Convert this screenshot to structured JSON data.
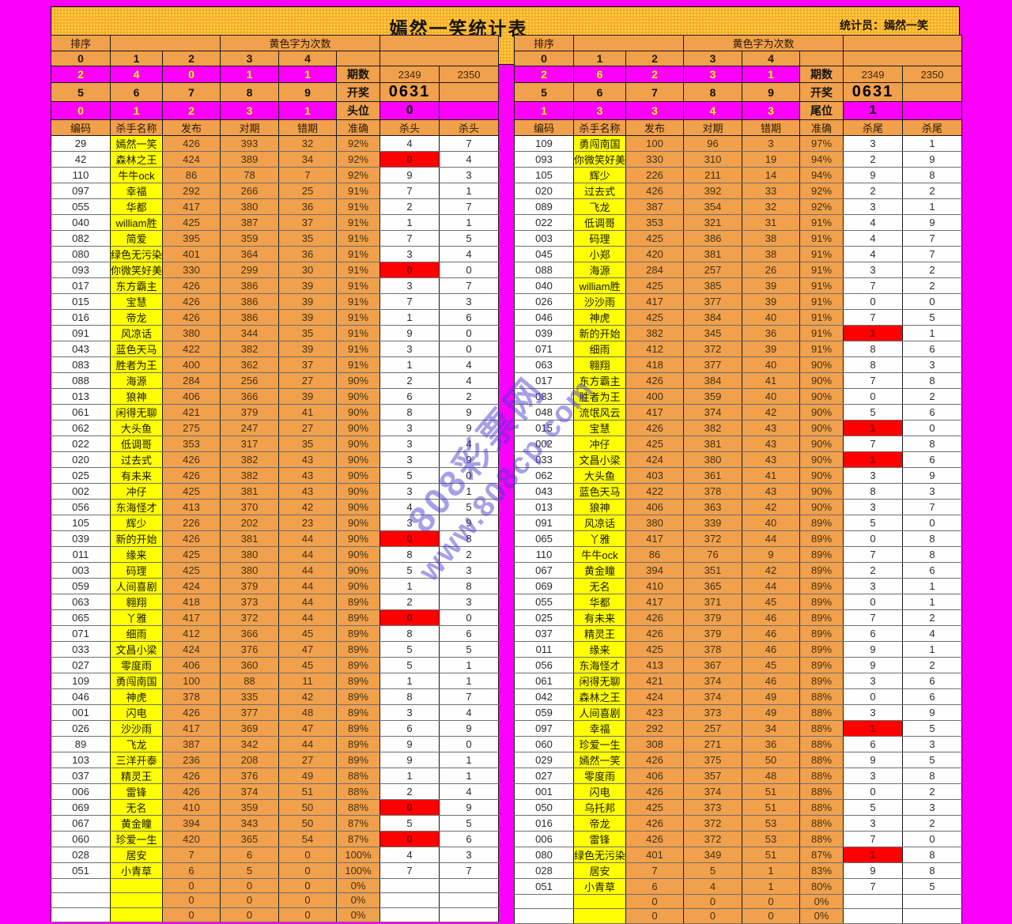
{
  "page": {
    "title": "嫣然一笑统计表",
    "statistician": "统计员：嫣然一笑",
    "watermark": {
      "line1": "808彩票网",
      "line2": "www.808cp.com"
    },
    "colors": {
      "background_magenta": "#fb00fb",
      "band_gold": "#f9ad2e",
      "cell_orange": "#f1a04c",
      "name_yellow": "#ffff00",
      "highlight_red": "#fe0000",
      "watermark_blue": "#443ace"
    }
  },
  "left": {
    "sort_label": "排序",
    "note": "黄色字为次数",
    "digits_top": [
      "0",
      "1",
      "2",
      "3",
      "4"
    ],
    "counts_top": [
      "2",
      "4",
      "0",
      "1",
      "1"
    ],
    "digits_bottom": [
      "5",
      "6",
      "7",
      "8",
      "9"
    ],
    "counts_bottom": [
      "0",
      "1",
      "2",
      "3",
      "1"
    ],
    "period_label": "期数",
    "period_values": [
      "2349",
      "2350"
    ],
    "draw_label": "开奖",
    "draw_value": "0631",
    "position_label": "头位",
    "position_value": "0",
    "columns": [
      "编码",
      "杀手名称",
      "发布",
      "对期",
      "错期",
      "准确",
      "杀头",
      "杀头"
    ],
    "red_rows": [
      1,
      8,
      25,
      30,
      42,
      44
    ],
    "empty_row_count": 3,
    "empty_row_template": [
      "",
      "",
      "0",
      "0",
      "0",
      "0%",
      "",
      ""
    ],
    "rows": [
      [
        "29",
        "嫣然一笑",
        "426",
        "393",
        "32",
        "92%",
        "4",
        "7"
      ],
      [
        "42",
        "森林之王",
        "424",
        "389",
        "34",
        "92%",
        "0",
        "4"
      ],
      [
        "110",
        "牛牛ock",
        "86",
        "78",
        "7",
        "92%",
        "9",
        "3"
      ],
      [
        "097",
        "幸福",
        "292",
        "266",
        "25",
        "91%",
        "7",
        "1"
      ],
      [
        "055",
        "华都",
        "417",
        "380",
        "36",
        "91%",
        "2",
        "7"
      ],
      [
        "040",
        "william胜",
        "425",
        "387",
        "37",
        "91%",
        "1",
        "1"
      ],
      [
        "082",
        "简爱",
        "395",
        "359",
        "35",
        "91%",
        "7",
        "5"
      ],
      [
        "080",
        "绿色无污染",
        "401",
        "364",
        "36",
        "91%",
        "3",
        "4"
      ],
      [
        "093",
        "你微笑好美",
        "330",
        "299",
        "30",
        "91%",
        "0",
        "0"
      ],
      [
        "017",
        "东方霸主",
        "426",
        "386",
        "39",
        "91%",
        "3",
        "7"
      ],
      [
        "015",
        "宝慧",
        "426",
        "386",
        "39",
        "91%",
        "7",
        "3"
      ],
      [
        "016",
        "帝龙",
        "426",
        "386",
        "39",
        "91%",
        "1",
        "6"
      ],
      [
        "091",
        "风凉话",
        "380",
        "344",
        "35",
        "91%",
        "9",
        "0"
      ],
      [
        "043",
        "蓝色天马",
        "422",
        "382",
        "39",
        "91%",
        "3",
        "0"
      ],
      [
        "083",
        "胜者为王",
        "400",
        "362",
        "37",
        "91%",
        "1",
        "4"
      ],
      [
        "088",
        "海源",
        "284",
        "256",
        "27",
        "90%",
        "2",
        "4"
      ],
      [
        "013",
        "狼神",
        "406",
        "366",
        "39",
        "90%",
        "6",
        "2"
      ],
      [
        "061",
        "闲得无聊",
        "421",
        "379",
        "41",
        "90%",
        "8",
        "9"
      ],
      [
        "062",
        "大头鱼",
        "275",
        "247",
        "27",
        "90%",
        "3",
        "9"
      ],
      [
        "022",
        "低调哥",
        "353",
        "317",
        "35",
        "90%",
        "3",
        "4"
      ],
      [
        "020",
        "过去式",
        "426",
        "382",
        "43",
        "90%",
        "3",
        "9"
      ],
      [
        "025",
        "有未来",
        "426",
        "382",
        "43",
        "90%",
        "5",
        "0"
      ],
      [
        "002",
        "冲仔",
        "425",
        "381",
        "43",
        "90%",
        "3",
        "1"
      ],
      [
        "056",
        "东海怪才",
        "413",
        "370",
        "42",
        "90%",
        "4",
        "5"
      ],
      [
        "105",
        "辉少",
        "226",
        "202",
        "23",
        "90%",
        "3",
        "9"
      ],
      [
        "039",
        "新的开始",
        "426",
        "381",
        "44",
        "90%",
        "0",
        "8"
      ],
      [
        "011",
        "缘来",
        "425",
        "380",
        "44",
        "90%",
        "8",
        "2"
      ],
      [
        "003",
        "码理",
        "425",
        "380",
        "44",
        "90%",
        "5",
        "3"
      ],
      [
        "059",
        "人间喜剧",
        "424",
        "379",
        "44",
        "90%",
        "1",
        "8"
      ],
      [
        "063",
        "翱翔",
        "418",
        "373",
        "44",
        "89%",
        "2",
        "3"
      ],
      [
        "065",
        "丫雅",
        "417",
        "372",
        "44",
        "89%",
        "0",
        "0"
      ],
      [
        "071",
        "细雨",
        "412",
        "366",
        "45",
        "89%",
        "8",
        "6"
      ],
      [
        "033",
        "文昌小梁",
        "424",
        "376",
        "47",
        "89%",
        "5",
        "5"
      ],
      [
        "027",
        "零度雨",
        "406",
        "360",
        "45",
        "89%",
        "5",
        "1"
      ],
      [
        "109",
        "勇闯南国",
        "100",
        "88",
        "11",
        "89%",
        "1",
        "1"
      ],
      [
        "046",
        "神虎",
        "378",
        "335",
        "42",
        "89%",
        "8",
        "7"
      ],
      [
        "001",
        "闪电",
        "426",
        "377",
        "48",
        "89%",
        "3",
        "4"
      ],
      [
        "026",
        "沙沙雨",
        "417",
        "369",
        "47",
        "89%",
        "6",
        "9"
      ],
      [
        "89",
        "飞龙",
        "387",
        "342",
        "44",
        "89%",
        "9",
        "0"
      ],
      [
        "103",
        "三洋开泰",
        "236",
        "208",
        "27",
        "89%",
        "9",
        "1"
      ],
      [
        "037",
        "精灵王",
        "426",
        "376",
        "49",
        "88%",
        "1",
        "1"
      ],
      [
        "006",
        "雷锋",
        "426",
        "374",
        "51",
        "88%",
        "2",
        "4"
      ],
      [
        "069",
        "无名",
        "410",
        "359",
        "50",
        "88%",
        "0",
        "9"
      ],
      [
        "067",
        "黄金瞳",
        "394",
        "343",
        "50",
        "87%",
        "5",
        "5"
      ],
      [
        "060",
        "珍爱一生",
        "420",
        "365",
        "54",
        "87%",
        "0",
        "6"
      ],
      [
        "028",
        "居安",
        "7",
        "6",
        "0",
        "100%",
        "4",
        "3"
      ],
      [
        "051",
        "小青草",
        "6",
        "5",
        "0",
        "100%",
        "7",
        "7"
      ]
    ]
  },
  "right": {
    "sort_label": "排序",
    "note": "黄色字为次数",
    "digits_top": [
      "0",
      "1",
      "2",
      "3",
      "4"
    ],
    "counts_top": [
      "2",
      "6",
      "2",
      "3",
      "1"
    ],
    "digits_bottom": [
      "5",
      "6",
      "7",
      "8",
      "9"
    ],
    "counts_bottom": [
      "1",
      "3",
      "3",
      "4",
      "3"
    ],
    "period_label": "期数",
    "period_values": [
      "2349",
      "2350"
    ],
    "draw_label": "开奖",
    "draw_value": "0631",
    "position_label": "尾位",
    "position_value": "1",
    "columns": [
      "编码",
      "杀手名称",
      "发布",
      "对期",
      "错期",
      "准确",
      "杀尾",
      "杀尾"
    ],
    "red_rows": [
      12,
      18,
      20,
      37,
      45
    ],
    "empty_row_count": 2,
    "empty_row_template": [
      "",
      "",
      "0",
      "0",
      "0",
      "0%",
      "",
      ""
    ],
    "rows": [
      [
        "109",
        "勇闯南国",
        "100",
        "96",
        "3",
        "97%",
        "3",
        "1"
      ],
      [
        "093",
        "你微笑好美",
        "330",
        "310",
        "19",
        "94%",
        "2",
        "9"
      ],
      [
        "105",
        "辉少",
        "226",
        "211",
        "14",
        "94%",
        "9",
        "8"
      ],
      [
        "020",
        "过去式",
        "426",
        "392",
        "33",
        "92%",
        "2",
        "2"
      ],
      [
        "089",
        "飞龙",
        "387",
        "354",
        "32",
        "92%",
        "3",
        "1"
      ],
      [
        "022",
        "低调哥",
        "353",
        "321",
        "31",
        "91%",
        "4",
        "9"
      ],
      [
        "003",
        "码理",
        "425",
        "386",
        "38",
        "91%",
        "4",
        "7"
      ],
      [
        "045",
        "小郑",
        "420",
        "381",
        "38",
        "91%",
        "4",
        "7"
      ],
      [
        "088",
        "海源",
        "284",
        "257",
        "26",
        "91%",
        "3",
        "2"
      ],
      [
        "040",
        "william胜",
        "425",
        "385",
        "39",
        "91%",
        "7",
        "2"
      ],
      [
        "026",
        "沙沙雨",
        "417",
        "377",
        "39",
        "91%",
        "0",
        "0"
      ],
      [
        "046",
        "神虎",
        "425",
        "384",
        "40",
        "91%",
        "7",
        "5"
      ],
      [
        "039",
        "新的开始",
        "382",
        "345",
        "36",
        "91%",
        "1",
        "1"
      ],
      [
        "071",
        "细雨",
        "412",
        "372",
        "39",
        "91%",
        "8",
        "6"
      ],
      [
        "063",
        "翱翔",
        "418",
        "377",
        "40",
        "90%",
        "8",
        "3"
      ],
      [
        "017",
        "东方霸主",
        "426",
        "384",
        "41",
        "90%",
        "7",
        "8"
      ],
      [
        "083",
        "胜者为王",
        "400",
        "359",
        "40",
        "90%",
        "0",
        "2"
      ],
      [
        "048",
        "流氓风云",
        "417",
        "374",
        "42",
        "90%",
        "5",
        "6"
      ],
      [
        "015",
        "宝慧",
        "426",
        "382",
        "43",
        "90%",
        "1",
        "0"
      ],
      [
        "002",
        "冲仔",
        "425",
        "381",
        "43",
        "90%",
        "7",
        "8"
      ],
      [
        "033",
        "文昌小梁",
        "424",
        "380",
        "43",
        "90%",
        "1",
        "6"
      ],
      [
        "062",
        "大头鱼",
        "403",
        "361",
        "41",
        "90%",
        "3",
        "9"
      ],
      [
        "043",
        "蓝色天马",
        "422",
        "378",
        "43",
        "90%",
        "8",
        "3"
      ],
      [
        "013",
        "狼神",
        "406",
        "363",
        "42",
        "90%",
        "3",
        "7"
      ],
      [
        "091",
        "风凉话",
        "380",
        "339",
        "40",
        "89%",
        "5",
        "0"
      ],
      [
        "065",
        "丫雅",
        "417",
        "372",
        "44",
        "89%",
        "0",
        "8"
      ],
      [
        "110",
        "牛牛ock",
        "86",
        "76",
        "9",
        "89%",
        "7",
        "8"
      ],
      [
        "067",
        "黄金瞳",
        "394",
        "351",
        "42",
        "89%",
        "2",
        "6"
      ],
      [
        "069",
        "无名",
        "410",
        "365",
        "44",
        "89%",
        "3",
        "1"
      ],
      [
        "055",
        "华都",
        "417",
        "371",
        "45",
        "89%",
        "0",
        "1"
      ],
      [
        "025",
        "有未来",
        "426",
        "379",
        "46",
        "89%",
        "7",
        "2"
      ],
      [
        "037",
        "精灵王",
        "426",
        "379",
        "46",
        "89%",
        "6",
        "4"
      ],
      [
        "011",
        "缘来",
        "425",
        "378",
        "46",
        "89%",
        "9",
        "1"
      ],
      [
        "056",
        "东海怪才",
        "413",
        "367",
        "45",
        "89%",
        "9",
        "2"
      ],
      [
        "061",
        "闲得无聊",
        "421",
        "374",
        "46",
        "89%",
        "3",
        "6"
      ],
      [
        "042",
        "森林之王",
        "424",
        "374",
        "49",
        "88%",
        "0",
        "6"
      ],
      [
        "059",
        "人间喜剧",
        "423",
        "373",
        "49",
        "88%",
        "3",
        "9"
      ],
      [
        "097",
        "幸福",
        "292",
        "257",
        "34",
        "88%",
        "1",
        "5"
      ],
      [
        "060",
        "珍爱一生",
        "308",
        "271",
        "36",
        "88%",
        "6",
        "3"
      ],
      [
        "029",
        "嫣然一笑",
        "426",
        "375",
        "50",
        "88%",
        "9",
        "5"
      ],
      [
        "027",
        "零度雨",
        "406",
        "357",
        "48",
        "88%",
        "3",
        "8"
      ],
      [
        "001",
        "闪电",
        "426",
        "374",
        "51",
        "88%",
        "0",
        "2"
      ],
      [
        "050",
        "乌托邦",
        "425",
        "373",
        "51",
        "88%",
        "5",
        "3"
      ],
      [
        "016",
        "帝龙",
        "426",
        "372",
        "53",
        "88%",
        "3",
        "2"
      ],
      [
        "006",
        "雷锋",
        "426",
        "372",
        "53",
        "88%",
        "7",
        "0"
      ],
      [
        "080",
        "绿色无污染",
        "401",
        "349",
        "51",
        "87%",
        "1",
        "8"
      ],
      [
        "028",
        "居安",
        "7",
        "5",
        "1",
        "83%",
        "9",
        "8"
      ],
      [
        "051",
        "小青草",
        "6",
        "4",
        "1",
        "80%",
        "7",
        "5"
      ]
    ]
  }
}
